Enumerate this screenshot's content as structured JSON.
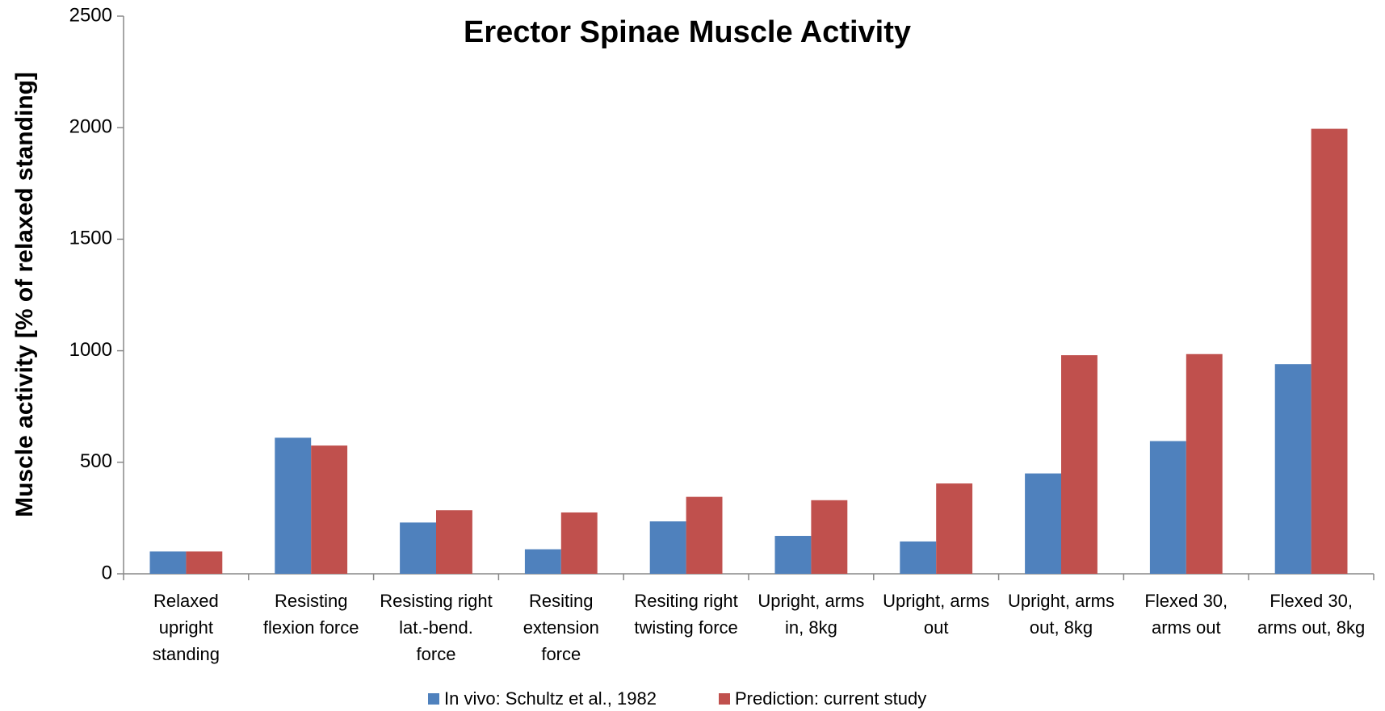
{
  "chart_data": {
    "type": "bar",
    "title": "Erector Spinae Muscle Activity",
    "y_label": "Muscle activity [% of relaxed standing]",
    "categories": [
      [
        "Relaxed",
        "upright",
        "standing"
      ],
      [
        "Resisting",
        "flexion force"
      ],
      [
        "Resisting right",
        "lat.-bend.",
        "force"
      ],
      [
        "Resiting",
        "extension",
        "force"
      ],
      [
        "Resiting right",
        "twisting force"
      ],
      [
        "Upright, arms",
        "in, 8kg"
      ],
      [
        "Upright, arms",
        "out"
      ],
      [
        "Upright, arms",
        "out, 8kg"
      ],
      [
        "Flexed 30,",
        "arms out"
      ],
      [
        "Flexed 30,",
        "arms out, 8kg"
      ]
    ],
    "series": [
      {
        "name": "In vivo: Schultz et al., 1982",
        "color": "#4f81bd",
        "values": [
          100,
          610,
          230,
          110,
          235,
          170,
          145,
          450,
          595,
          940
        ]
      },
      {
        "name": "Prediction: current study",
        "color": "#c0504d",
        "values": [
          100,
          575,
          285,
          275,
          345,
          330,
          405,
          980,
          985,
          1995
        ]
      }
    ],
    "ylim": [
      0,
      2500
    ],
    "yticks": [
      0,
      500,
      1000,
      1500,
      2000,
      2500
    ],
    "grid": false,
    "legend": "bottom"
  }
}
